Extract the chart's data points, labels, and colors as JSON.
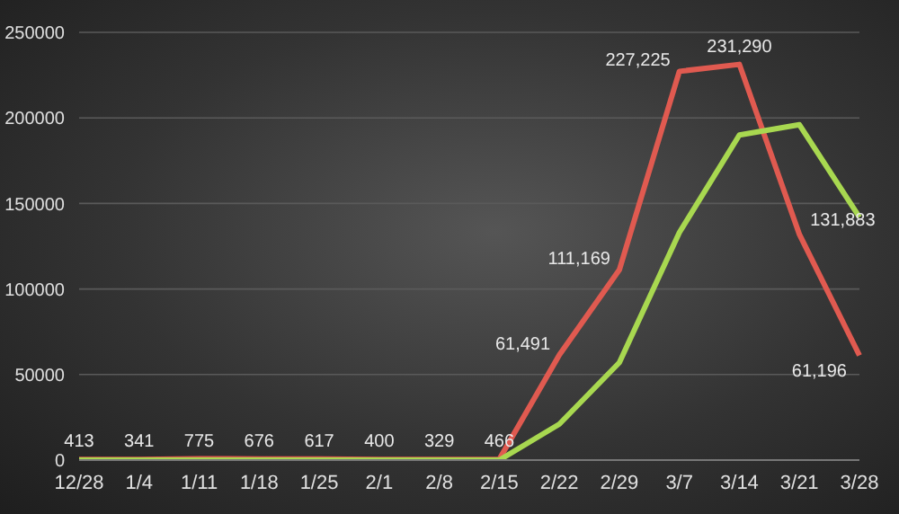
{
  "chart_data": {
    "type": "line",
    "categories": [
      "12/28",
      "1/4",
      "1/11",
      "1/18",
      "1/25",
      "2/1",
      "2/8",
      "2/15",
      "2/22",
      "2/29",
      "3/7",
      "3/14",
      "3/21",
      "3/28"
    ],
    "series": [
      {
        "color": "#e05a50",
        "values": [
          413,
          341,
          775,
          676,
          617,
          400,
          329,
          466,
          61491,
          111169,
          227225,
          231290,
          131883,
          61196
        ],
        "value_labels": [
          "413",
          "341",
          "775",
          "676",
          "617",
          "400",
          "329",
          "466",
          "61,491",
          "111,169",
          "227,225",
          "231,290",
          "131,883",
          "61,196"
        ]
      },
      {
        "color": "#a8d850",
        "values": [
          0,
          0,
          0,
          0,
          0,
          0,
          0,
          0,
          21000,
          57000,
          133000,
          190000,
          196000,
          142000
        ]
      }
    ],
    "ylim": [
      0,
      250000
    ],
    "yticks": [
      0,
      50000,
      100000,
      150000,
      200000,
      250000
    ],
    "grid": "y",
    "marker": "none",
    "line_style": "solid"
  }
}
